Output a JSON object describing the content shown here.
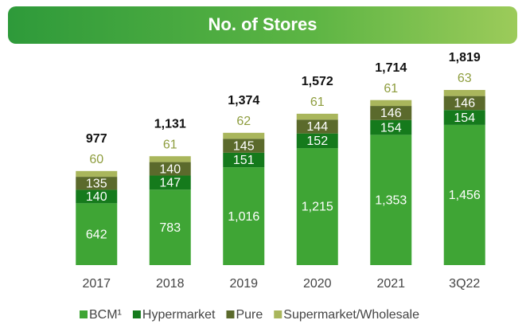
{
  "chart_data": {
    "type": "stacked_bar",
    "title": "No. of Stores",
    "categories": [
      "2017",
      "2018",
      "2019",
      "2020",
      "2021",
      "3Q22"
    ],
    "series": [
      {
        "name": "BCM¹",
        "color": "#3fa535",
        "values": [
          642,
          783,
          1016,
          1215,
          1353,
          1456
        ],
        "value_labels": [
          "642",
          "783",
          "1,016",
          "1,215",
          "1,353",
          "1,456"
        ]
      },
      {
        "name": "Hypermarket",
        "color": "#157a1c",
        "values": [
          140,
          147,
          151,
          152,
          154,
          154
        ]
      },
      {
        "name": "Pure",
        "color": "#5b6a2c",
        "values": [
          135,
          140,
          145,
          144,
          146,
          146
        ]
      },
      {
        "name": "Supermarket/Wholesale",
        "color": "#a9b65c",
        "values": [
          60,
          61,
          62,
          61,
          61,
          63
        ]
      }
    ],
    "totals": [
      977,
      1131,
      1374,
      1572,
      1714,
      1819
    ],
    "total_labels": [
      "977",
      "1,131",
      "1,374",
      "1,572",
      "1,714",
      "1,819"
    ]
  }
}
